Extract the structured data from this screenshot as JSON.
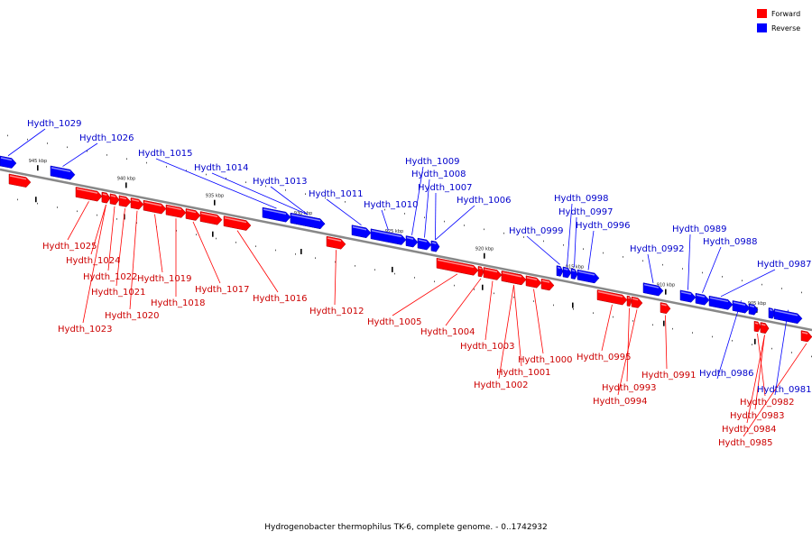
{
  "legend": [
    {
      "label": "Forward",
      "color": "#ff0000"
    },
    {
      "label": "Reverse",
      "color": "#0000ff"
    }
  ],
  "caption": "Hydrogenobacter thermophilus TK-6, complete genome. - 0..1742932",
  "colors": {
    "forward": "#ff0000",
    "reverse": "#0000ff",
    "forward_text": "#cc0000",
    "reverse_text": "#0000cc",
    "backbone": "#888888"
  },
  "ticks": [
    {
      "label": "945 kbp"
    },
    {
      "label": "940 kbp"
    },
    {
      "label": "935 kbp"
    },
    {
      "label": "930 kbp"
    },
    {
      "label": "925 kbp"
    },
    {
      "label": "920 kbp"
    },
    {
      "label": "915 kbp"
    },
    {
      "label": "910 kbp"
    },
    {
      "label": "905 kbp"
    }
  ],
  "genes": [
    {
      "name": "Hydth_1029",
      "strand": "reverse"
    },
    {
      "name": "Hydth_1026",
      "strand": "reverse"
    },
    {
      "name": "Hydth_1015",
      "strand": "reverse"
    },
    {
      "name": "Hydth_1014",
      "strand": "reverse"
    },
    {
      "name": "Hydth_1013",
      "strand": "reverse"
    },
    {
      "name": "Hydth_1011",
      "strand": "reverse"
    },
    {
      "name": "Hydth_1010",
      "strand": "reverse"
    },
    {
      "name": "Hydth_1009",
      "strand": "reverse"
    },
    {
      "name": "Hydth_1008",
      "strand": "reverse"
    },
    {
      "name": "Hydth_1007",
      "strand": "reverse"
    },
    {
      "name": "Hydth_1006",
      "strand": "reverse"
    },
    {
      "name": "Hydth_0999",
      "strand": "reverse"
    },
    {
      "name": "Hydth_0998",
      "strand": "reverse"
    },
    {
      "name": "Hydth_0997",
      "strand": "reverse"
    },
    {
      "name": "Hydth_0996",
      "strand": "reverse"
    },
    {
      "name": "Hydth_0992",
      "strand": "reverse"
    },
    {
      "name": "Hydth_0989",
      "strand": "reverse"
    },
    {
      "name": "Hydth_0988",
      "strand": "reverse"
    },
    {
      "name": "Hydth_0987",
      "strand": "reverse"
    },
    {
      "name": "Hydth_0986",
      "strand": "reverse"
    },
    {
      "name": "Hydth_0981",
      "strand": "reverse"
    },
    {
      "name": "Hydth_1025",
      "strand": "forward"
    },
    {
      "name": "Hydth_1024",
      "strand": "forward"
    },
    {
      "name": "Hydth_1022",
      "strand": "forward"
    },
    {
      "name": "Hydth_1021",
      "strand": "forward"
    },
    {
      "name": "Hydth_1020",
      "strand": "forward"
    },
    {
      "name": "Hydth_1023",
      "strand": "forward"
    },
    {
      "name": "Hydth_1019",
      "strand": "forward"
    },
    {
      "name": "Hydth_1018",
      "strand": "forward"
    },
    {
      "name": "Hydth_1017",
      "strand": "forward"
    },
    {
      "name": "Hydth_1016",
      "strand": "forward"
    },
    {
      "name": "Hydth_1012",
      "strand": "forward"
    },
    {
      "name": "Hydth_1005",
      "strand": "forward"
    },
    {
      "name": "Hydth_1004",
      "strand": "forward"
    },
    {
      "name": "Hydth_1003",
      "strand": "forward"
    },
    {
      "name": "Hydth_1000",
      "strand": "forward"
    },
    {
      "name": "Hydth_1001",
      "strand": "forward"
    },
    {
      "name": "Hydth_1002",
      "strand": "forward"
    },
    {
      "name": "Hydth_0995",
      "strand": "forward"
    },
    {
      "name": "Hydth_0993",
      "strand": "forward"
    },
    {
      "name": "Hydth_0994",
      "strand": "forward"
    },
    {
      "name": "Hydth_0991",
      "strand": "forward"
    },
    {
      "name": "Hydth_0982",
      "strand": "forward"
    },
    {
      "name": "Hydth_0983",
      "strand": "forward"
    },
    {
      "name": "Hydth_0984",
      "strand": "forward"
    },
    {
      "name": "Hydth_0985",
      "strand": "forward"
    }
  ]
}
